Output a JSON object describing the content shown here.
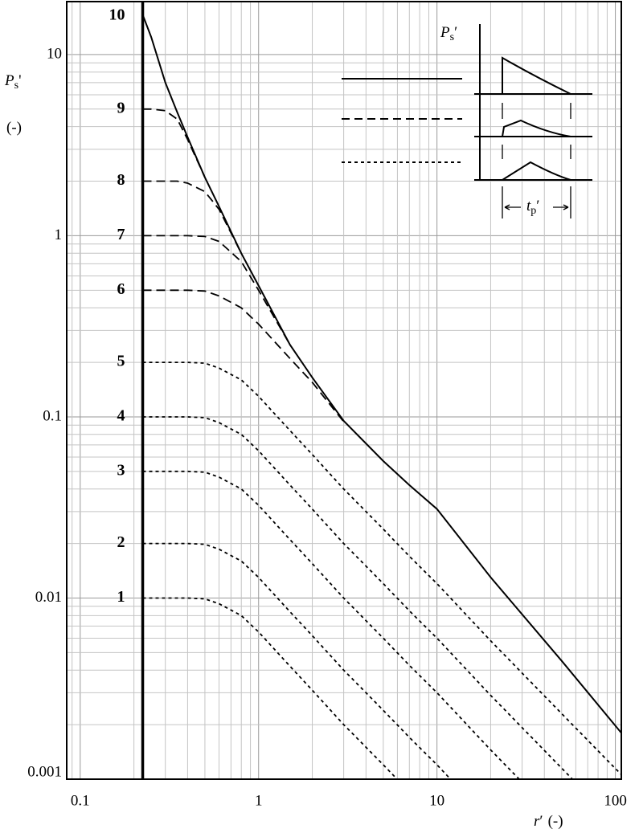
{
  "chart_data": {
    "type": "line",
    "log_x": true,
    "log_y": true,
    "grid": true,
    "minor_grid": true,
    "xlabel": {
      "symbol": "r",
      "prime": "′",
      "unit": "(-)"
    },
    "ylabel": {
      "symbol": "P",
      "subscript": "s",
      "prime": "'",
      "unit": "(-)"
    },
    "inset": {
      "ylabel": {
        "symbol": "P",
        "subscript": "s",
        "prime": "′"
      },
      "xlabel": {
        "symbol": "t",
        "subscript": "p",
        "prime": "′"
      }
    },
    "xlim": [
      0.084,
      108
    ],
    "ylim": [
      0.001,
      19.6
    ],
    "xticks": [
      0.1,
      1,
      10,
      100
    ],
    "yticks": [
      0.001,
      0.01,
      0.1,
      1,
      10
    ],
    "x": [
      0.224,
      0.25,
      0.3,
      0.35,
      0.4,
      0.5,
      0.6,
      0.8,
      1,
      1.5,
      2,
      3,
      5,
      7,
      10,
      20,
      50,
      108
    ],
    "series": [
      {
        "name": "1",
        "color": "#000",
        "style": "dotted",
        "values": [
          0.01,
          0.01,
          0.01,
          0.01,
          0.01,
          0.0099,
          0.0093,
          0.008,
          0.0065,
          0.0042,
          0.0031,
          0.002,
          0.0012,
          0.00085,
          null,
          null,
          null,
          null
        ]
      },
      {
        "name": "2",
        "color": "#000",
        "style": "dotted",
        "values": [
          0.02,
          0.02,
          0.02,
          0.02,
          0.02,
          0.0198,
          0.0186,
          0.016,
          0.013,
          0.0084,
          0.0062,
          0.004,
          0.0024,
          0.0017,
          0.0012,
          0.00058,
          null,
          null
        ]
      },
      {
        "name": "3",
        "color": "#000",
        "style": "dotted",
        "values": [
          0.05,
          0.05,
          0.05,
          0.05,
          0.05,
          0.0495,
          0.0465,
          0.04,
          0.0325,
          0.021,
          0.0155,
          0.01,
          0.006,
          0.00425,
          0.003,
          0.00145,
          0.000575,
          null
        ]
      },
      {
        "name": "4",
        "color": "#000",
        "style": "dotted",
        "values": [
          0.1,
          0.1,
          0.1,
          0.1,
          0.1,
          0.099,
          0.093,
          0.08,
          0.065,
          0.042,
          0.031,
          0.02,
          0.012,
          0.0085,
          0.006,
          0.0029,
          0.00115,
          0.00053
        ]
      },
      {
        "name": "5",
        "color": "#000",
        "style": "dotted",
        "values": [
          0.2,
          0.2,
          0.2,
          0.2,
          0.2,
          0.198,
          0.186,
          0.16,
          0.13,
          0.084,
          0.062,
          0.04,
          0.024,
          0.017,
          0.012,
          0.0058,
          0.0023,
          0.00106
        ]
      },
      {
        "name": "6",
        "color": "#000",
        "style": "dashed",
        "values": [
          0.5,
          0.5,
          0.5,
          0.5,
          0.5,
          0.495,
          0.465,
          0.4,
          0.325,
          0.21,
          0.155,
          0.094,
          null,
          null,
          null,
          null,
          null,
          null
        ]
      },
      {
        "name": "7",
        "color": "#000",
        "style": "dashed",
        "values": [
          1,
          1,
          1,
          1,
          1,
          0.99,
          0.93,
          0.72,
          0.5,
          0.25,
          null,
          null,
          null,
          null,
          null,
          null,
          null,
          null
        ]
      },
      {
        "name": "8",
        "color": "#000",
        "style": "dashed",
        "values": [
          2,
          2,
          2,
          2,
          1.95,
          1.75,
          1.4,
          0.8,
          null,
          null,
          null,
          null,
          null,
          null,
          null,
          null,
          null,
          null
        ]
      },
      {
        "name": "9",
        "color": "#000",
        "style": "dashed",
        "values": [
          5,
          5,
          4.9,
          4.4,
          3.4,
          2.1,
          null,
          null,
          null,
          null,
          null,
          null,
          null,
          null,
          null,
          null,
          null,
          null
        ]
      },
      {
        "name": "10",
        "color": "#000",
        "style": "solid",
        "values": [
          16.6,
          12.5,
          7,
          4.8,
          3.5,
          2.1,
          1.45,
          0.8,
          0.53,
          0.25,
          0.165,
          0.095,
          0.057,
          0.042,
          0.031,
          0.013,
          0.0045,
          0.0018
        ]
      }
    ]
  }
}
